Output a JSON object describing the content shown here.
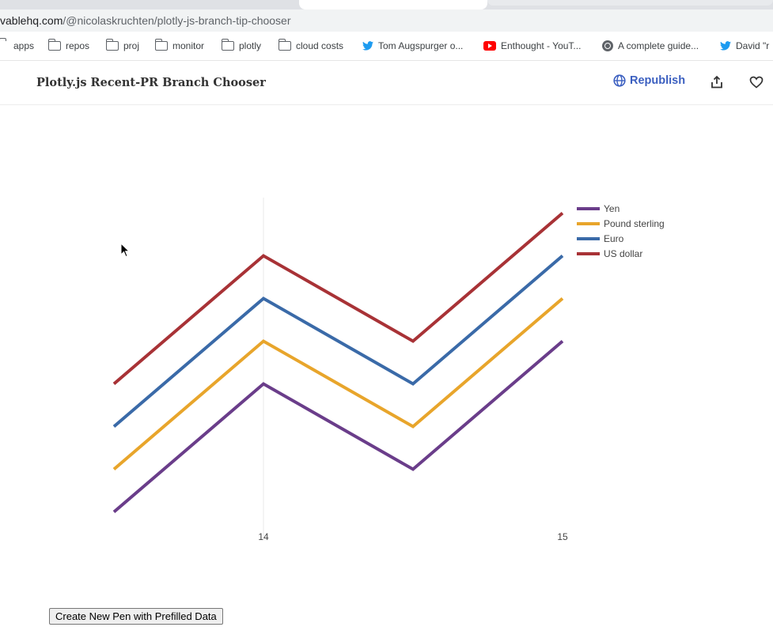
{
  "browser": {
    "url_host": "vablehq.com",
    "url_path": "/@nicolaskruchten/plotly-js-branch-tip-chooser",
    "bookmarks": [
      {
        "label": "apps",
        "icon": "folder-icon"
      },
      {
        "label": "repos",
        "icon": "folder-icon"
      },
      {
        "label": "proj",
        "icon": "folder-icon"
      },
      {
        "label": "monitor",
        "icon": "folder-icon"
      },
      {
        "label": "plotly",
        "icon": "folder-icon"
      },
      {
        "label": "cloud costs",
        "icon": "folder-icon"
      },
      {
        "label": "Tom Augspurger o...",
        "icon": "twitter-icon"
      },
      {
        "label": "Enthought - YouT...",
        "icon": "youtube-icon"
      },
      {
        "label": "A complete guide...",
        "icon": "globe-icon"
      },
      {
        "label": "David \"r",
        "icon": "twitter-icon"
      }
    ]
  },
  "header": {
    "title": "Plotly.js Recent-PR Branch Chooser",
    "republish_label": "Republish",
    "share_icon": "share-icon",
    "like_icon": "heart-icon"
  },
  "chart_data": {
    "type": "line",
    "x": [
      13.5,
      14,
      14.5,
      15
    ],
    "x_ticks": [
      "14",
      "15"
    ],
    "xlim": [
      13.5,
      15
    ],
    "ylim": [
      0.5,
      7.5
    ],
    "grid": "vertical gridline at x=14",
    "legend_position": "top-right",
    "series": [
      {
        "name": "Yen",
        "color": "#6a3d8a",
        "values": [
          1,
          4,
          2,
          5
        ]
      },
      {
        "name": "Pound sterling",
        "color": "#e8a52b",
        "values": [
          2,
          5,
          3,
          6
        ]
      },
      {
        "name": "Euro",
        "color": "#3a6aa8",
        "values": [
          3,
          6,
          4,
          7
        ]
      },
      {
        "name": "US dollar",
        "color": "#a83236",
        "values": [
          4,
          7,
          5,
          8
        ]
      }
    ]
  },
  "footer": {
    "create_button_label": "Create New Pen with Prefilled Data"
  }
}
